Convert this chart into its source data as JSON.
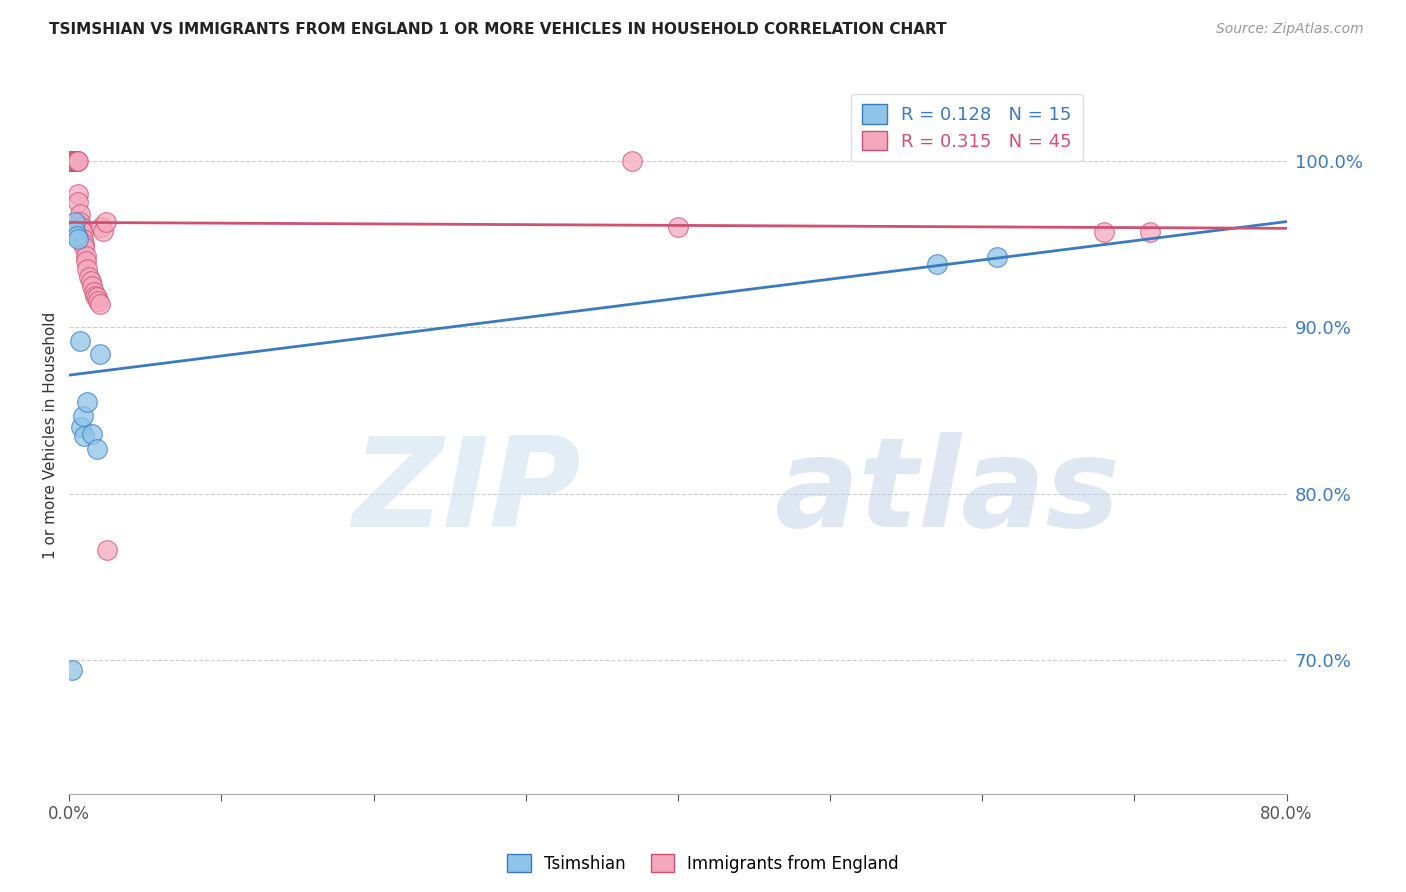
{
  "title": "TSIMSHIAN VS IMMIGRANTS FROM ENGLAND 1 OR MORE VEHICLES IN HOUSEHOLD CORRELATION CHART",
  "source": "Source: ZipAtlas.com",
  "ylabel": "1 or more Vehicles in Household",
  "ytick_labels": [
    "70.0%",
    "80.0%",
    "90.0%",
    "100.0%"
  ],
  "ytick_values": [
    0.7,
    0.8,
    0.9,
    1.0
  ],
  "xlim": [
    0.0,
    0.8
  ],
  "ylim": [
    0.62,
    1.05
  ],
  "legend_label1": "Tsimshian",
  "legend_label2": "Immigrants from England",
  "r1": 0.128,
  "n1": 15,
  "r2": 0.315,
  "n2": 45,
  "color_blue": "#8ec4e8",
  "color_pink": "#f4a8be",
  "color_blue_line": "#3a7abf",
  "color_pink_line": "#d05070",
  "watermark_zip": "ZIP",
  "watermark_atlas": "atlas",
  "tsimshian_x": [
    0.002,
    0.004,
    0.004,
    0.005,
    0.006,
    0.007,
    0.008,
    0.009,
    0.01,
    0.012,
    0.015,
    0.018,
    0.02,
    0.57,
    0.61
  ],
  "tsimshian_y": [
    0.694,
    0.963,
    0.958,
    0.955,
    0.953,
    0.892,
    0.84,
    0.847,
    0.835,
    0.855,
    0.836,
    0.827,
    0.884,
    0.938,
    0.942
  ],
  "england_x": [
    0.001,
    0.001,
    0.001,
    0.002,
    0.002,
    0.002,
    0.003,
    0.003,
    0.003,
    0.004,
    0.004,
    0.004,
    0.005,
    0.005,
    0.005,
    0.006,
    0.006,
    0.006,
    0.007,
    0.007,
    0.008,
    0.008,
    0.009,
    0.009,
    0.01,
    0.01,
    0.011,
    0.011,
    0.012,
    0.013,
    0.014,
    0.015,
    0.016,
    0.017,
    0.018,
    0.019,
    0.02,
    0.021,
    0.022,
    0.024,
    0.025,
    0.37,
    0.4,
    0.68,
    0.71
  ],
  "england_y": [
    1.0,
    1.0,
    1.0,
    1.0,
    1.0,
    1.0,
    1.0,
    1.0,
    1.0,
    1.0,
    1.0,
    1.0,
    1.0,
    1.0,
    1.0,
    1.0,
    0.98,
    0.975,
    0.968,
    0.963,
    0.96,
    0.958,
    0.957,
    0.953,
    0.95,
    0.948,
    0.943,
    0.94,
    0.935,
    0.93,
    0.928,
    0.925,
    0.921,
    0.919,
    0.918,
    0.916,
    0.914,
    0.96,
    0.958,
    0.963,
    0.766,
    1.0,
    0.96,
    0.957,
    0.957
  ]
}
